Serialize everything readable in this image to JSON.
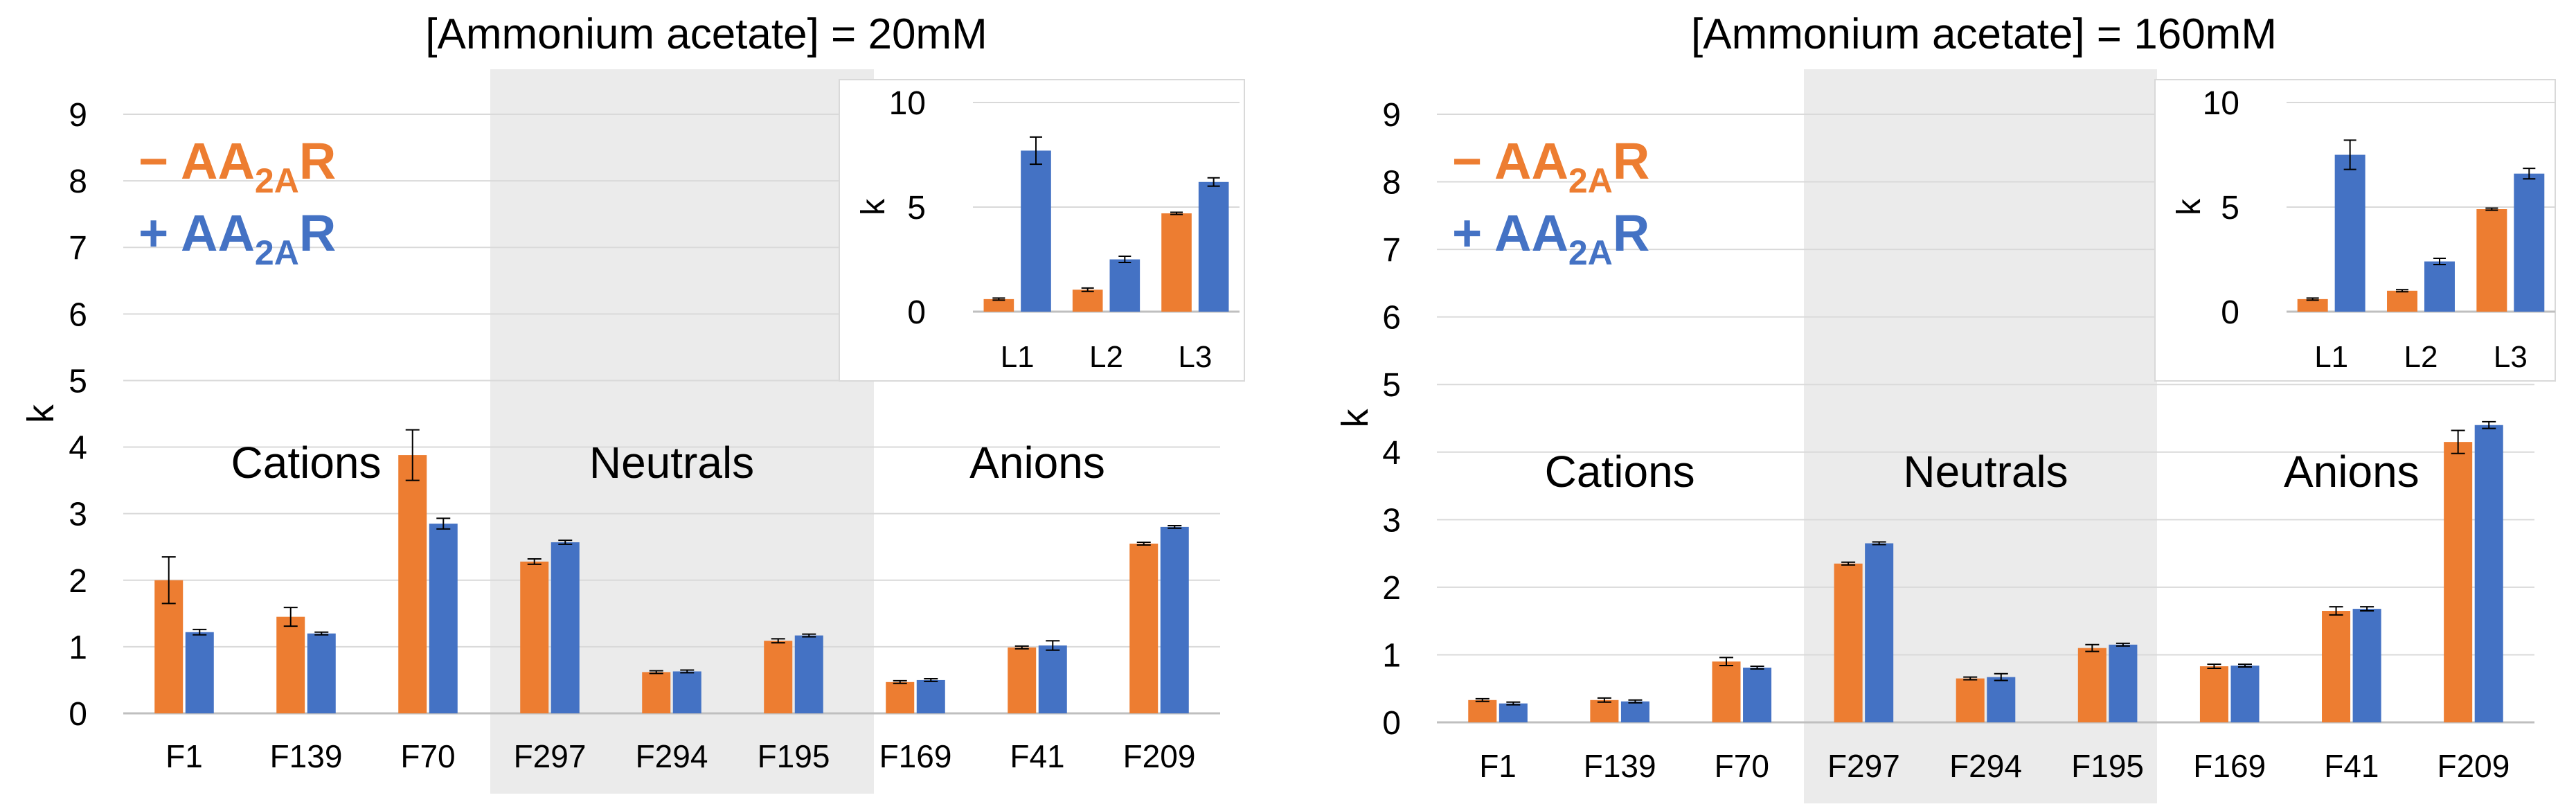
{
  "colors": {
    "minus": "#ED7D31",
    "plus": "#4472C4",
    "shade": "#EBEBEB",
    "grid": "#D9D9D9",
    "axis": "#BFBFBF"
  },
  "legend": {
    "minus_sign": "−",
    "plus_sign": "+",
    "prefix": "AA",
    "subscript": "2A",
    "suffix": "R"
  },
  "chart_data": [
    {
      "type": "bar",
      "title": "[Ammonium acetate] = 20mM",
      "ylabel": "k",
      "ylim": [
        0,
        9
      ],
      "yticks": [
        "0",
        "1",
        "2",
        "3",
        "4",
        "5",
        "6",
        "7",
        "8",
        "9"
      ],
      "categories": [
        "F1",
        "F139",
        "F70",
        "F297",
        "F294",
        "F195",
        "F169",
        "F41",
        "F209"
      ],
      "groups": [
        {
          "label": "Cations",
          "start": 0,
          "end": 2,
          "shaded": false
        },
        {
          "label": "Neutrals",
          "start": 3,
          "end": 5,
          "shaded": true
        },
        {
          "label": "Anions",
          "start": 6,
          "end": 8,
          "shaded": false
        }
      ],
      "series": [
        {
          "name": "− AA2AR",
          "values": [
            2.0,
            1.45,
            3.88,
            2.28,
            0.62,
            1.09,
            0.47,
            0.99,
            2.55
          ],
          "errors": [
            0.35,
            0.14,
            0.38,
            0.04,
            0.02,
            0.03,
            0.02,
            0.02,
            0.02
          ]
        },
        {
          "name": "+ AA2AR",
          "values": [
            1.22,
            1.2,
            2.85,
            2.57,
            0.63,
            1.17,
            0.5,
            1.02,
            2.8
          ],
          "errors": [
            0.04,
            0.02,
            0.08,
            0.03,
            0.02,
            0.02,
            0.02,
            0.07,
            0.02
          ]
        }
      ],
      "inset": {
        "categories": [
          "L1",
          "L2",
          "L3"
        ],
        "ylim": [
          0,
          10
        ],
        "yticks": [
          "0",
          "5",
          "10"
        ],
        "ylabel": "k",
        "series": [
          {
            "name": "− AA2AR",
            "values": [
              0.6,
              1.05,
              4.7
            ],
            "errors": [
              0.05,
              0.08,
              0.05
            ]
          },
          {
            "name": "+ AA2AR",
            "values": [
              7.7,
              2.5,
              6.2
            ],
            "errors": [
              0.65,
              0.15,
              0.2
            ]
          }
        ]
      }
    },
    {
      "type": "bar",
      "title": "[Ammonium acetate] = 160mM",
      "ylabel": "k",
      "ylim": [
        0,
        9
      ],
      "yticks": [
        "0",
        "1",
        "2",
        "3",
        "4",
        "5",
        "6",
        "7",
        "8",
        "9"
      ],
      "categories": [
        "F1",
        "F139",
        "F70",
        "F297",
        "F294",
        "F195",
        "F169",
        "F41",
        "F209"
      ],
      "groups": [
        {
          "label": "Cations",
          "start": 0,
          "end": 2,
          "shaded": false
        },
        {
          "label": "Neutrals",
          "start": 3,
          "end": 5,
          "shaded": true
        },
        {
          "label": "Anions",
          "start": 6,
          "end": 8,
          "shaded": false
        }
      ],
      "series": [
        {
          "name": "− AA2AR",
          "values": [
            0.33,
            0.33,
            0.9,
            2.35,
            0.65,
            1.1,
            0.83,
            1.65,
            4.15
          ],
          "errors": [
            0.02,
            0.03,
            0.06,
            0.02,
            0.02,
            0.05,
            0.03,
            0.06,
            0.17
          ]
        },
        {
          "name": "+ AA2AR",
          "values": [
            0.28,
            0.31,
            0.81,
            2.65,
            0.67,
            1.15,
            0.84,
            1.68,
            4.4
          ],
          "errors": [
            0.02,
            0.02,
            0.02,
            0.02,
            0.05,
            0.02,
            0.02,
            0.03,
            0.05
          ]
        }
      ],
      "inset": {
        "categories": [
          "L1",
          "L2",
          "L3"
        ],
        "ylim": [
          0,
          10
        ],
        "yticks": [
          "0",
          "5",
          "10"
        ],
        "ylabel": "k",
        "series": [
          {
            "name": "− AA2AR",
            "values": [
              0.6,
              1.0,
              4.9
            ],
            "errors": [
              0.05,
              0.05,
              0.05
            ]
          },
          {
            "name": "+ AA2AR",
            "values": [
              7.5,
              2.4,
              6.6
            ],
            "errors": [
              0.7,
              0.15,
              0.25
            ]
          }
        ]
      }
    }
  ]
}
